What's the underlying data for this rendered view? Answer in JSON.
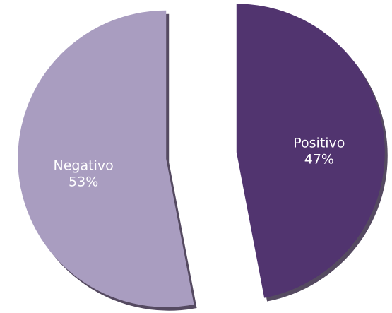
{
  "chart_data": {
    "type": "pie",
    "categories": [
      "Positivo",
      "Negativo"
    ],
    "values": [
      47,
      53
    ],
    "value_labels": [
      "47%",
      "53%"
    ],
    "colors": [
      "#51346f",
      "#a99dc0"
    ]
  }
}
